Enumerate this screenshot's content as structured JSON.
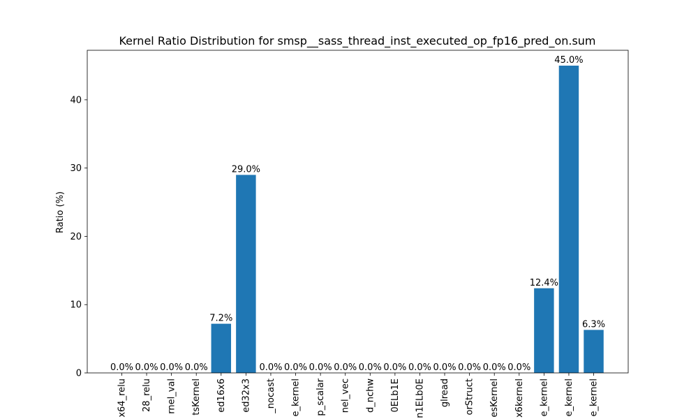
{
  "chart_data": {
    "type": "bar",
    "title": "Kernel Ratio Distribution for smsp__sass_thread_inst_executed_op_fp16_pred_on.sum",
    "xlabel": "",
    "ylabel": "Ratio (%)",
    "ylim": [
      0,
      47.25
    ],
    "yticks": [
      0,
      10,
      20,
      30,
      40
    ],
    "grid": false,
    "bar_color": "#1f77b4",
    "categories": [
      "x64_relu",
      "28_relu",
      "rnel_val",
      "tsKernel",
      "ed16x6",
      "ed32x3",
      "_nocast",
      "e_kernel",
      "p_scalar",
      "nel_vec",
      "d_nchw",
      "0ELb1E",
      "n1ELb0E",
      "glread",
      "orStruct",
      "esKernel",
      "x6kernel",
      "e_kernel",
      "e_kernel",
      "e_kernel"
    ],
    "values": [
      0.0,
      0.0,
      0.0,
      0.0,
      7.2,
      29.0,
      0.0,
      0.0,
      0.0,
      0.0,
      0.0,
      0.0,
      0.0,
      0.0,
      0.0,
      0.0,
      0.0,
      12.4,
      45.0,
      6.3
    ],
    "value_labels": [
      "0.0%",
      "0.0%",
      "0.0%",
      "0.0%",
      "7.2%",
      "29.0%",
      "0.0%",
      "0.0%",
      "0.0%",
      "0.0%",
      "0.0%",
      "0.0%",
      "0.0%",
      "0.0%",
      "0.0%",
      "0.0%",
      "0.0%",
      "12.4%",
      "45.0%",
      "6.3%"
    ]
  }
}
